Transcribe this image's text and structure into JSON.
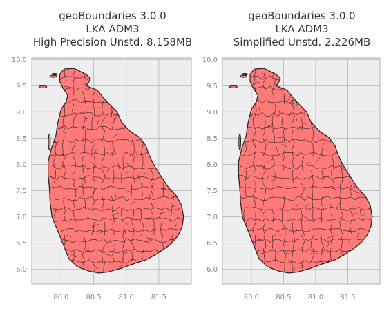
{
  "figure": {
    "background": "#ffffff",
    "axes_background": "#eeeeee",
    "grid_color": "#bcbcbc",
    "spine_color": "#bcbcbc",
    "tick_label_color": "#888888",
    "title_color": "#333333"
  },
  "chart_data": [
    {
      "type": "map",
      "title_lines": [
        "geoBoundaries 3.0.0",
        "LKA ADM3",
        "High Precision Unstd. 8.158MB"
      ],
      "xlabel": "",
      "ylabel": "",
      "xlim": [
        79.55,
        82.0
      ],
      "ylim": [
        5.72,
        10.03
      ],
      "x_ticks": [
        80.0,
        80.5,
        81.0,
        81.5
      ],
      "x_tick_labels": [
        "80.0",
        "80.5",
        "81.0",
        "81.5"
      ],
      "y_ticks": [
        6.0,
        6.5,
        7.0,
        7.5,
        8.0,
        8.5,
        9.0,
        9.5,
        10.0
      ],
      "y_tick_labels": [
        "6.0",
        "6.5",
        "7.0",
        "7.5",
        "8.0",
        "8.5",
        "9.0",
        "9.5",
        "10.0"
      ],
      "grid": true,
      "fill_color": "#ff7a78",
      "edge_color": "#222222",
      "country": "LKA",
      "admin_level": "ADM3"
    },
    {
      "type": "map",
      "title_lines": [
        "geoBoundaries 3.0.0",
        "LKA ADM3",
        "Simplified Unstd. 2.226MB"
      ],
      "xlabel": "",
      "ylabel": "",
      "xlim": [
        79.55,
        82.0
      ],
      "ylim": [
        5.72,
        10.03
      ],
      "x_ticks": [
        80.0,
        80.5,
        81.0,
        81.5
      ],
      "x_tick_labels": [
        "80.0",
        "80.5",
        "81.0",
        "81.5"
      ],
      "y_ticks": [
        6.0,
        6.5,
        7.0,
        7.5,
        8.0,
        8.5,
        9.0,
        9.5,
        10.0
      ],
      "y_tick_labels": [
        "6.0",
        "6.5",
        "7.0",
        "7.5",
        "8.0",
        "8.5",
        "9.0",
        "9.5",
        "10.0"
      ],
      "grid": true,
      "fill_color": "#ff7a78",
      "edge_color": "#222222",
      "country": "LKA",
      "admin_level": "ADM3"
    }
  ]
}
